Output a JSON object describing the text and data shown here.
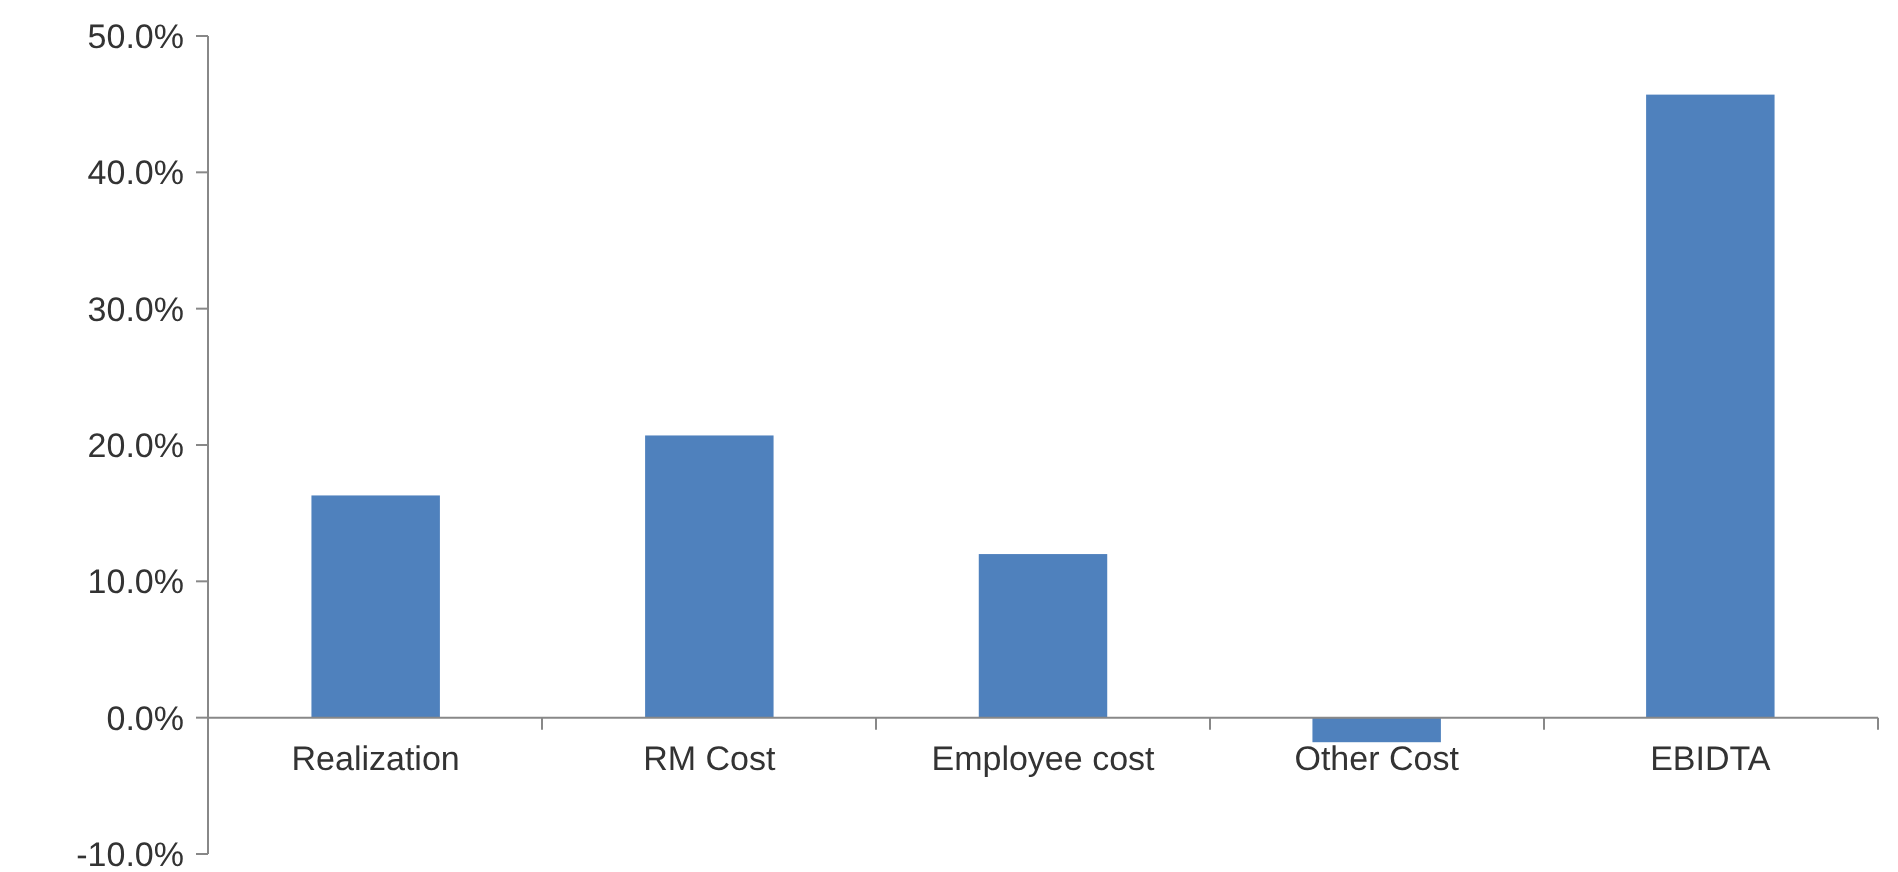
{
  "chart_data": {
    "type": "bar",
    "categories": [
      "Realization",
      "RM Cost",
      "Employee cost",
      "Other Cost",
      "EBIDTA"
    ],
    "values": [
      16.3,
      20.7,
      12.0,
      -1.8,
      45.7
    ],
    "color": "#4f81bd",
    "ylim": [
      -10,
      50
    ],
    "yticks": [
      {
        "value": -10,
        "label": "-10.0%"
      },
      {
        "value": 0,
        "label": "0.0%"
      },
      {
        "value": 10,
        "label": "10.0%"
      },
      {
        "value": 20,
        "label": "20.0%"
      },
      {
        "value": 30,
        "label": "30.0%"
      },
      {
        "value": 40,
        "label": "40.0%"
      },
      {
        "value": 50,
        "label": "50.0%"
      }
    ],
    "grid": false
  }
}
